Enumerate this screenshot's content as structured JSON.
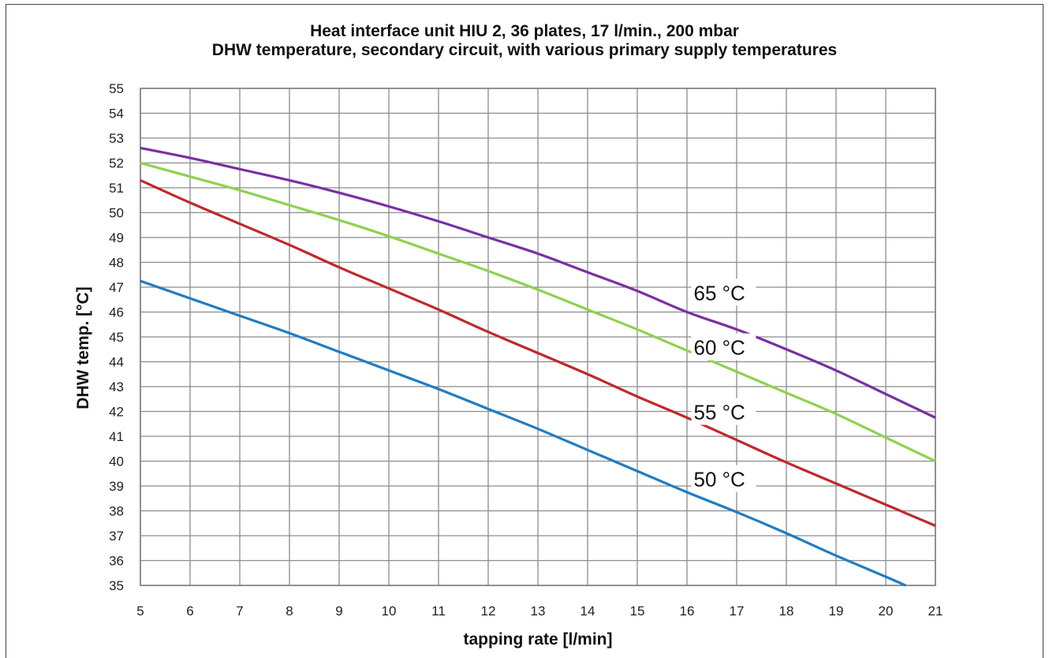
{
  "chart_data": {
    "type": "line",
    "title": "Heat interface unit HIU 2, 36 plates, 17 l/min., 200 mbar",
    "subtitle": "DHW temperature, secondary circuit, with various primary supply temperatures",
    "xlabel": "tapping rate  [l/min]",
    "ylabel": "DHW temp. [°C]",
    "xlim": [
      5,
      21
    ],
    "ylim": [
      35,
      55
    ],
    "xticks": [
      "5",
      "6",
      "7",
      "8",
      "9",
      "10",
      "11",
      "12",
      "13",
      "14",
      "15",
      "16",
      "17",
      "18",
      "19",
      "20",
      "21"
    ],
    "yticks": [
      "35",
      "36",
      "37",
      "38",
      "39",
      "40",
      "41",
      "42",
      "43",
      "44",
      "45",
      "46",
      "47",
      "48",
      "49",
      "50",
      "51",
      "52",
      "53",
      "54",
      "55"
    ],
    "grid": true,
    "series": [
      {
        "name": "65 °C",
        "color": "#7a2fa4",
        "x": [
          5,
          6,
          7,
          8,
          9,
          10,
          11,
          12,
          13,
          14,
          15,
          16,
          17,
          18,
          19,
          20,
          21
        ],
        "y": [
          52.6,
          52.2,
          51.75,
          51.3,
          50.8,
          50.25,
          49.65,
          49.0,
          48.35,
          47.6,
          46.85,
          46.0,
          45.3,
          44.5,
          43.65,
          42.7,
          41.75
        ]
      },
      {
        "name": "60 °C",
        "color": "#8fd14f",
        "x": [
          5,
          6,
          7,
          8,
          9,
          10,
          11,
          12,
          13,
          14,
          15,
          16,
          17,
          18,
          19,
          20,
          21
        ],
        "y": [
          52.0,
          51.45,
          50.9,
          50.3,
          49.7,
          49.05,
          48.35,
          47.65,
          46.9,
          46.1,
          45.3,
          44.45,
          43.6,
          42.75,
          41.9,
          40.95,
          40.0
        ]
      },
      {
        "name": "55 °C",
        "color": "#c0282c",
        "x": [
          5,
          6,
          7,
          8,
          9,
          10,
          11,
          12,
          13,
          14,
          15,
          16,
          17,
          18,
          19,
          20,
          21
        ],
        "y": [
          51.3,
          50.4,
          49.55,
          48.7,
          47.8,
          46.95,
          46.1,
          45.2,
          44.35,
          43.5,
          42.6,
          41.75,
          40.85,
          39.95,
          39.1,
          38.25,
          37.4
        ]
      },
      {
        "name": "50 °C",
        "color": "#1f7cc2",
        "x": [
          5,
          6,
          7,
          8,
          9,
          10,
          11,
          12,
          13,
          14,
          15,
          16,
          17,
          18,
          19,
          20,
          20.4
        ],
        "y": [
          47.25,
          46.55,
          45.85,
          45.15,
          44.4,
          43.65,
          42.9,
          42.1,
          41.3,
          40.45,
          39.6,
          38.75,
          37.95,
          37.1,
          36.2,
          35.35,
          35.0
        ]
      }
    ],
    "annotations": [
      {
        "text": "65 °C",
        "x": 16.5,
        "y": 46.8
      },
      {
        "text": "60 °C",
        "x": 16.5,
        "y": 44.6
      },
      {
        "text": "55 °C",
        "x": 16.5,
        "y": 42.0
      },
      {
        "text": "50 °C",
        "x": 16.5,
        "y": 39.3
      }
    ]
  }
}
